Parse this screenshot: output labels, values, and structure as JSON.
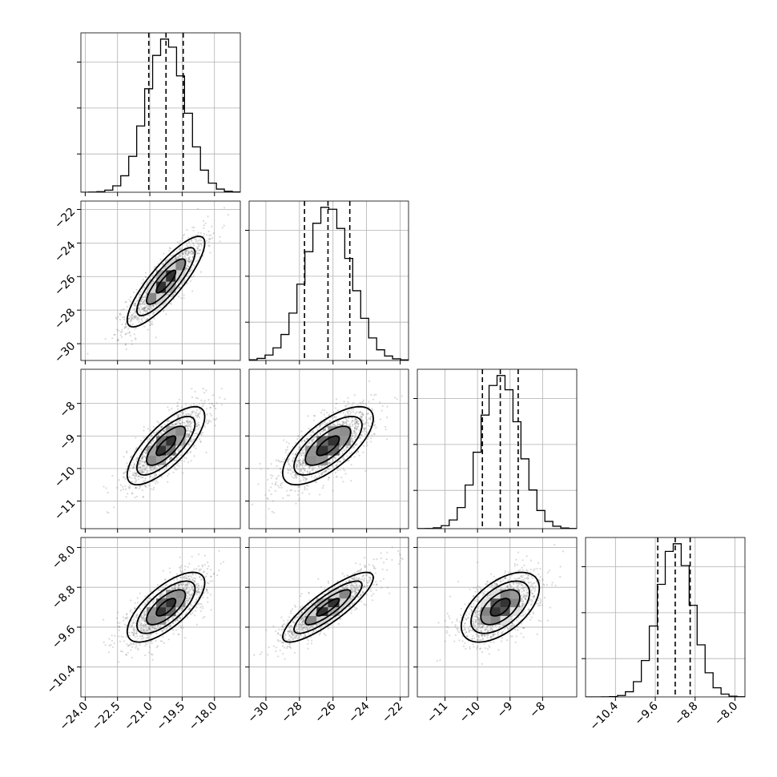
{
  "chart_data": {
    "type": "corner",
    "grid": true,
    "parameters": [
      {
        "mean": -20.25,
        "sigma": 0.9,
        "q16": -21.05,
        "q50": -20.25,
        "q84": -19.45,
        "range": [
          -24.2,
          -16.8
        ],
        "ticks": [
          -24.0,
          -22.5,
          -21.0,
          -19.5,
          -18.0
        ],
        "tick_labels": [
          "−24.0",
          "−22.5",
          "−21.0",
          "−19.5",
          "−18.0"
        ]
      },
      {
        "mean": -26.3,
        "sigma": 1.35,
        "q16": -27.7,
        "q50": -26.3,
        "q84": -25.0,
        "range": [
          -31.0,
          -21.5
        ],
        "ticks": [
          -30,
          -28,
          -26,
          -24,
          -22
        ],
        "tick_labels": [
          "−30",
          "−28",
          "−26",
          "−24",
          "−22"
        ]
      },
      {
        "mean": -9.3,
        "sigma": 0.6,
        "q16": -9.85,
        "q50": -9.3,
        "q84": -8.75,
        "range": [
          -11.85,
          -6.95
        ],
        "ticks": [
          -11,
          -10,
          -9,
          -8
        ],
        "tick_labels": [
          "−11",
          "−10",
          "−9",
          "−8"
        ]
      },
      {
        "mean": -9.2,
        "sigma": 0.35,
        "q16": -9.55,
        "q50": -9.2,
        "q84": -8.9,
        "range": [
          -11.0,
          -7.8
        ],
        "ticks": [
          -10.4,
          -9.6,
          -8.8,
          -8.0
        ],
        "tick_labels": [
          "−10.4",
          "−9.6",
          "−8.8",
          "−8.0"
        ]
      }
    ],
    "correlations": [
      [
        1.0,
        0.85,
        0.75,
        0.7
      ],
      [
        0.85,
        1.0,
        0.7,
        0.85
      ],
      [
        0.75,
        0.7,
        1.0,
        0.55
      ],
      [
        0.7,
        0.85,
        0.55,
        1.0
      ]
    ],
    "histogram_bins": 20,
    "contour_levels_sigma": [
      0.5,
      1.0,
      1.5,
      2.0
    ]
  }
}
